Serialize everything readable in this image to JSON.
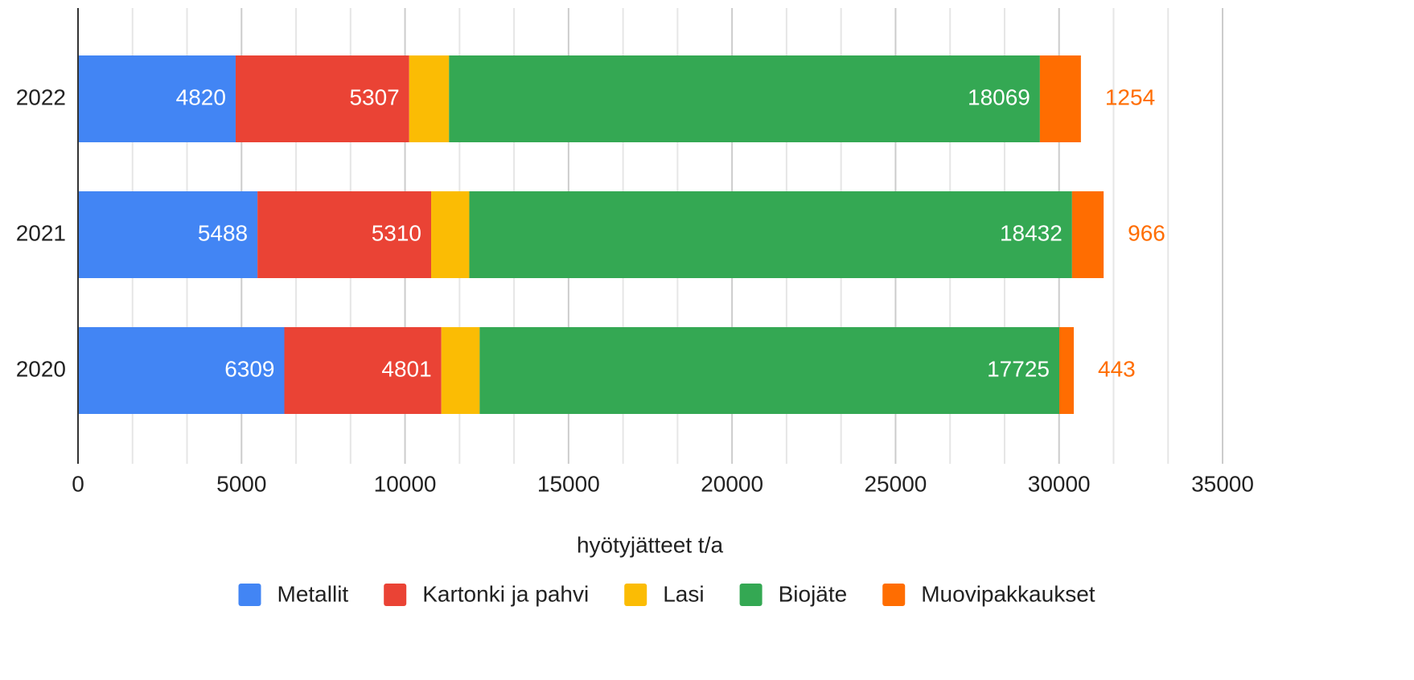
{
  "chart_data": {
    "type": "stacked_barh",
    "x_label": "hyötyjätteet t/a",
    "categories": [
      "2022",
      "2021",
      "2020"
    ],
    "series": [
      {
        "name": "Metallit",
        "color": "#4285f4",
        "label_color": "#ffffff",
        "label_position": "inside",
        "values": [
          4820,
          5488,
          6309
        ]
      },
      {
        "name": "Kartonki ja pahvi",
        "color": "#ea4335",
        "label_color": "#ffffff",
        "label_position": "inside",
        "values": [
          5307,
          5310,
          4801
        ]
      },
      {
        "name": "Lasi",
        "color": "#fbbc04",
        "label_color": "#fbbc04",
        "label_position": "outside",
        "values": [
          1218,
          1167,
          1172
        ]
      },
      {
        "name": "Biojäte",
        "color": "#34a853",
        "label_color": "#ffffff",
        "label_position": "inside",
        "values": [
          18069,
          18432,
          17725
        ]
      },
      {
        "name": "Muovipakkaukset",
        "color": "#ff6d01",
        "label_color": "#ff6d01",
        "label_position": "outside",
        "values": [
          1254,
          966,
          443
        ]
      }
    ],
    "xlim": [
      0,
      35000
    ],
    "xticks": [
      0,
      5000,
      10000,
      15000,
      20000,
      25000,
      30000,
      35000
    ],
    "grid": true,
    "legend": "bottom"
  }
}
